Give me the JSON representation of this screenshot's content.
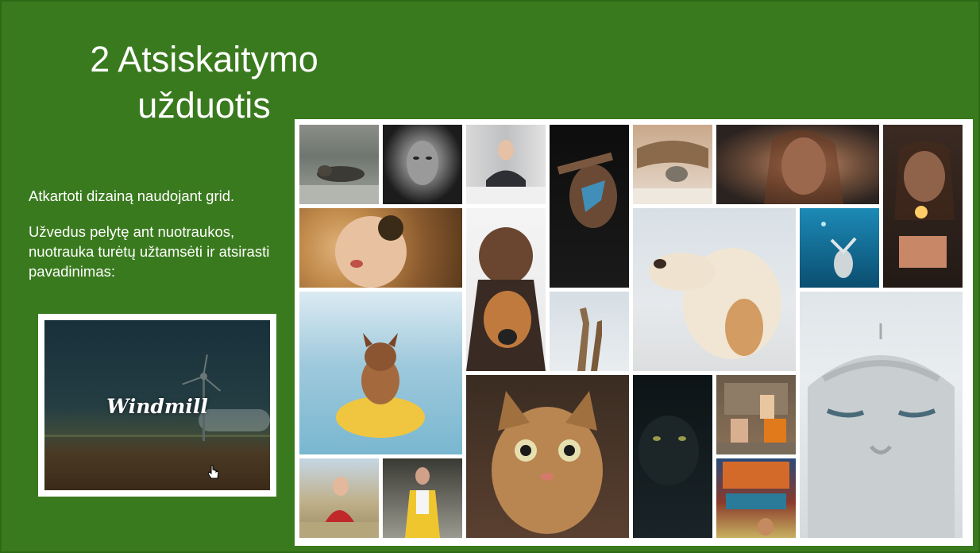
{
  "slide": {
    "title": "2 Atsiskaitymo užduotis",
    "paragraph1": "Atkartoti dizainą naudojant grid.",
    "paragraph2": "Užvedus pelytę ant nuotraukos, nuotrauka turėtų užtamsėti ir atsirasti pavadinimas:",
    "preview_label": "Windmill",
    "background_color": "#3a7a1e"
  },
  "gallery": {
    "tiles": [
      {
        "name": "seal",
        "icon": "seal-photo"
      },
      {
        "name": "face-bw",
        "icon": "portrait-photo"
      },
      {
        "name": "woman-table",
        "icon": "portrait-photo"
      },
      {
        "name": "blue-paint-face",
        "icon": "portrait-photo"
      },
      {
        "name": "cat-blanket",
        "icon": "cat-photo"
      },
      {
        "name": "woman-hair",
        "icon": "portrait-photo"
      },
      {
        "name": "sparkler-girl",
        "icon": "portrait-photo"
      },
      {
        "name": "eyepatch-woman",
        "icon": "portrait-photo"
      },
      {
        "name": "man-dog",
        "icon": "dog-photo"
      },
      {
        "name": "labrador",
        "icon": "dog-photo"
      },
      {
        "name": "diver",
        "icon": "underwater-photo"
      },
      {
        "name": "giraffes",
        "icon": "giraffe-photo"
      },
      {
        "name": "bulldog-kayak",
        "icon": "dog-photo"
      },
      {
        "name": "buddha-statue",
        "icon": "statue-photo"
      },
      {
        "name": "cat-closeup",
        "icon": "cat-photo"
      },
      {
        "name": "black-cat",
        "icon": "cat-photo"
      },
      {
        "name": "sadhus",
        "icon": "people-photo"
      },
      {
        "name": "girl-grass",
        "icon": "portrait-photo"
      },
      {
        "name": "yellow-coat",
        "icon": "portrait-photo"
      },
      {
        "name": "wala-sign",
        "icon": "street-photo"
      }
    ]
  }
}
